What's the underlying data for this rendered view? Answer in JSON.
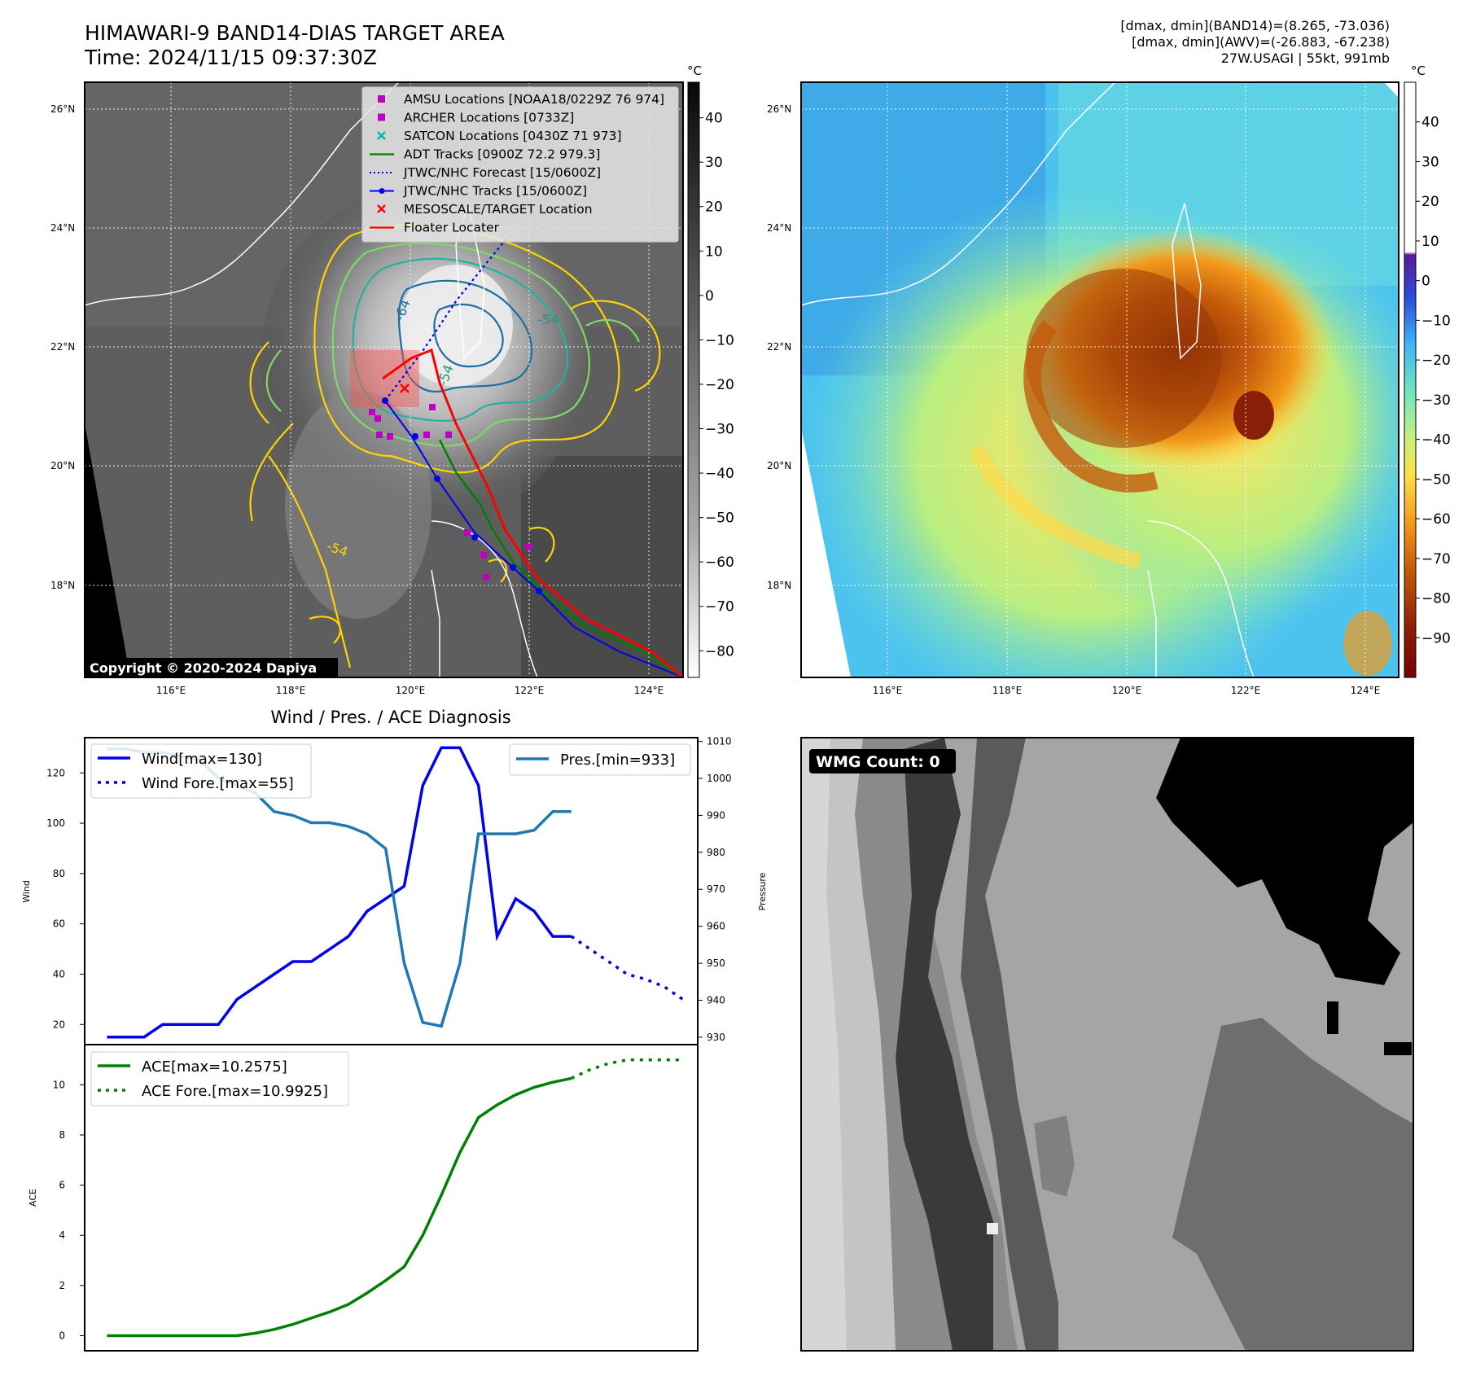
{
  "header": {
    "title": "HIMAWARI-9 BAND14-DIAS TARGET AREA",
    "time": "Time: 2024/11/15 09:37:30Z",
    "dmax_band14": "[dmax, dmin](BAND14)=(8.265, -73.036)",
    "dmax_awv": "[dmax, dmin](AWV)=(-26.883, -67.238)",
    "storm": "27W.USAGI | 55kt, 991mb"
  },
  "colors": {
    "wind": "#0000ee",
    "pressure": "#1f77b4",
    "ace": "#008000",
    "floater": "#ff0000",
    "adt": "#008000",
    "amsu": "#c000c0",
    "satcon": "#00b3b3"
  },
  "maps": {
    "copyright": "Copyright © 2020-2024 Dapiya",
    "lat_labels": [
      "26°N",
      "24°N",
      "22°N",
      "20°N",
      "18°N"
    ],
    "lon_labels": [
      "116°E",
      "118°E",
      "120°E",
      "122°E",
      "124°E"
    ],
    "legend": [
      {
        "label": "AMSU Locations [NOAA18/0229Z 76 974]",
        "marker": "square",
        "color": "#c000c0"
      },
      {
        "label": "ARCHER Locations [0733Z]",
        "marker": "square",
        "color": "#c000c0"
      },
      {
        "label": "SATCON Locations [0430Z 71 973]",
        "marker": "x",
        "color": "#00b3b3"
      },
      {
        "label": "ADT Tracks [0900Z 72.2 979.3]",
        "marker": "line",
        "color": "#008000"
      },
      {
        "label": "JTWC/NHC Forecast [15/0600Z]",
        "marker": "dotted",
        "color": "#0000ee"
      },
      {
        "label": "JTWC/NHC Tracks [15/0600Z]",
        "marker": "line-dot",
        "color": "#0000ee"
      },
      {
        "label": "MESOSCALE/TARGET Location",
        "marker": "x",
        "color": "#ff0000"
      },
      {
        "label": "Floater Locater",
        "marker": "line",
        "color": "#ff0000"
      }
    ],
    "contour_labels": [
      "-64",
      "-54",
      "-54",
      "-54"
    ],
    "ir_colorbar": {
      "unit": "°C",
      "ticks": [
        "40",
        "30",
        "20",
        "10",
        "0",
        "−10",
        "−20",
        "−30",
        "−40",
        "−50",
        "−60",
        "−70",
        "−80"
      ]
    },
    "awv_colorbar": {
      "unit": "°C",
      "ticks": [
        "40",
        "30",
        "20",
        "10",
        "0",
        "−10",
        "−20",
        "−30",
        "−40",
        "−50",
        "−60",
        "−70",
        "−80",
        "−90"
      ]
    }
  },
  "wmg": {
    "label": "WMG Count: 0"
  },
  "chart_data": [
    {
      "type": "line",
      "title": "Wind / Pres. / ACE Diagnosis",
      "ylabel": "Wind",
      "ylabel_right": "Pressure",
      "ylim": [
        12,
        134
      ],
      "ylim_right": [
        928,
        1011
      ],
      "yticks": [
        20,
        40,
        60,
        80,
        100,
        120
      ],
      "yticks_right": [
        930,
        940,
        950,
        960,
        970,
        980,
        990,
        1000,
        1010
      ],
      "legend_left": [
        "Wind[max=130]",
        "Wind Fore.[max=55]"
      ],
      "legend_right": [
        "Pres.[min=933]"
      ],
      "series": [
        {
          "name": "Wind[max=130]",
          "axis": "left",
          "style": "solid",
          "x": [
            0,
            1,
            2,
            3,
            4,
            5,
            6,
            7,
            8,
            9,
            10,
            11,
            12,
            13,
            14,
            15,
            16,
            17,
            18,
            19,
            20,
            21,
            22,
            23,
            24,
            25
          ],
          "values": [
            15,
            15,
            15,
            20,
            20,
            20,
            20,
            30,
            35,
            40,
            45,
            45,
            50,
            55,
            65,
            70,
            75,
            115,
            130,
            130,
            115,
            55,
            70,
            65,
            55,
            55
          ]
        },
        {
          "name": "Wind Fore.[max=55]",
          "axis": "left",
          "style": "dotted",
          "x": [
            25,
            26,
            27,
            28,
            29,
            30,
            31
          ],
          "values": [
            55,
            50,
            45,
            40,
            38,
            35,
            30
          ]
        },
        {
          "name": "Pres.[min=933]",
          "axis": "right",
          "style": "solid",
          "x": [
            0,
            1,
            2,
            3,
            4,
            5,
            6,
            7,
            8,
            9,
            10,
            11,
            12,
            13,
            14,
            15,
            16,
            17,
            18,
            19,
            20,
            21,
            22,
            23,
            24,
            25
          ],
          "values": [
            1008,
            1008,
            1007,
            1007,
            1006,
            1005,
            1000,
            998,
            996,
            991,
            990,
            988,
            988,
            987,
            985,
            981,
            950,
            934,
            933,
            950,
            985,
            985,
            985,
            986,
            991,
            991
          ]
        }
      ]
    },
    {
      "type": "line",
      "ylabel": "ACE",
      "ylim": [
        -0.6,
        11.6
      ],
      "yticks": [
        0,
        2,
        4,
        6,
        8,
        10
      ],
      "legend": [
        "ACE[max=10.2575]",
        "ACE Fore.[max=10.9925]"
      ],
      "series": [
        {
          "name": "ACE[max=10.2575]",
          "style": "solid",
          "x": [
            0,
            1,
            2,
            3,
            4,
            5,
            6,
            7,
            8,
            9,
            10,
            11,
            12,
            13,
            14,
            15,
            16,
            17,
            18,
            19,
            20,
            21,
            22,
            23,
            24,
            25
          ],
          "values": [
            0,
            0,
            0,
            0,
            0,
            0,
            0,
            0,
            0.1,
            0.25,
            0.45,
            0.7,
            0.95,
            1.25,
            1.7,
            2.2,
            2.75,
            4.0,
            5.6,
            7.3,
            8.7,
            9.2,
            9.6,
            9.9,
            10.1,
            10.2575
          ]
        },
        {
          "name": "ACE Fore.[max=10.9925]",
          "style": "dotted",
          "x": [
            25,
            26,
            27,
            28,
            29,
            30,
            31
          ],
          "values": [
            10.2575,
            10.6,
            10.85,
            10.99,
            10.99,
            10.99,
            10.99
          ]
        }
      ]
    }
  ]
}
